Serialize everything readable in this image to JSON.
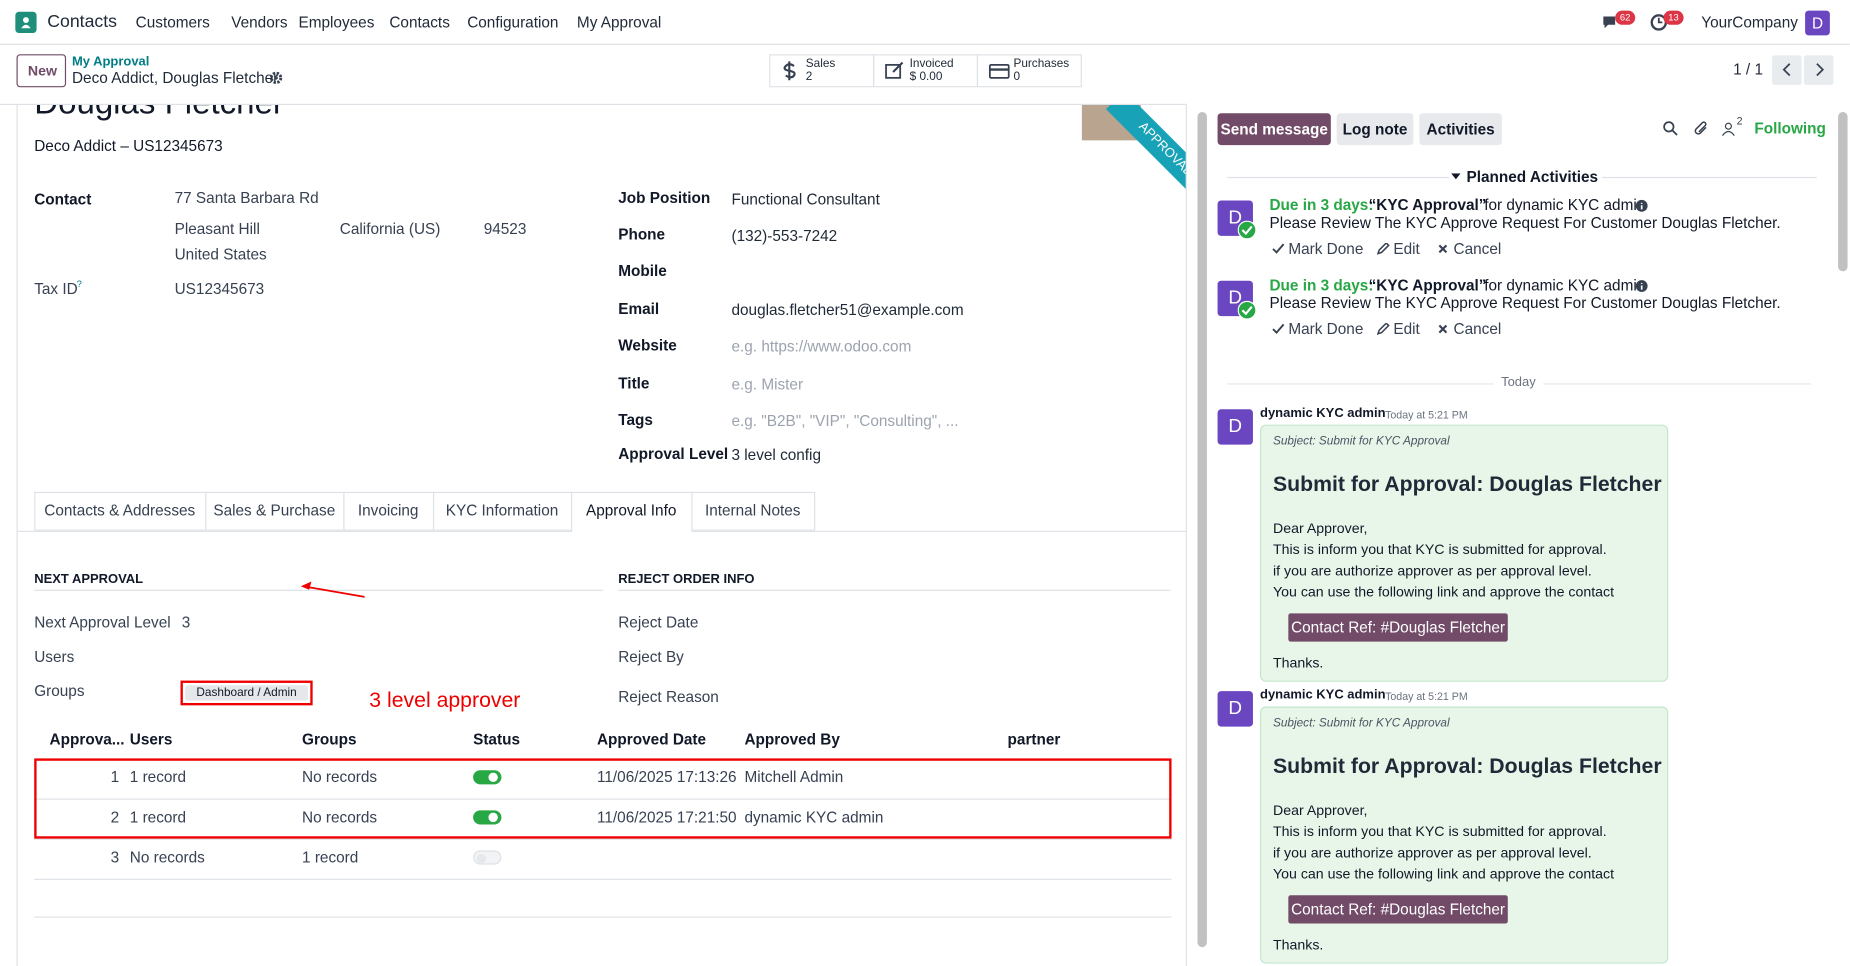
{
  "navbar": {
    "app": "Contacts",
    "menu": [
      "Customers",
      "Vendors",
      "Employees",
      "Contacts",
      "Configuration",
      "My Approval"
    ],
    "messages_badge": "62",
    "activities_badge": "13",
    "company": "YourCompany",
    "avatar": "D"
  },
  "control_panel": {
    "new_button": "New",
    "breadcrumb": "My Approval",
    "record": "Deco Addict, Douglas Fletcher",
    "smart_buttons": [
      {
        "label": "Sales",
        "value": "2"
      },
      {
        "label": "Invoiced",
        "value": "$ 0.00"
      },
      {
        "label": "Purchases",
        "value": "0"
      }
    ],
    "pager": "1 / 1"
  },
  "form": {
    "name": "Douglas Fletcher",
    "subtitle": "Deco Addict – US12345673",
    "ribbon": "APPROVAL",
    "contact": {
      "label": "Contact",
      "street": "77 Santa Barbara Rd",
      "city": "Pleasant Hill",
      "state": "California (US)",
      "zip": "94523",
      "country": "United States"
    },
    "tax_id": {
      "label": "Tax ID",
      "help": "?",
      "value": "US12345673"
    },
    "right_fields": [
      {
        "label": "Job Position",
        "value": "Functional Consultant"
      },
      {
        "label": "Phone",
        "value": "(132)-553-7242"
      },
      {
        "label": "Mobile"
      },
      {
        "label": "Email",
        "value": "douglas.fletcher51@example.com"
      },
      {
        "label": "Website",
        "placeholder": "e.g. https://www.odoo.com"
      },
      {
        "label": "Title",
        "placeholder": "e.g. Mister"
      },
      {
        "label": "Tags",
        "placeholder": "e.g. \"B2B\", \"VIP\", \"Consulting\", ..."
      },
      {
        "label": "Approval Level",
        "value": "3 level config"
      }
    ],
    "tabs": [
      "Contacts & Addresses",
      "Sales & Purchase",
      "Invoicing",
      "KYC Information",
      "Approval Info",
      "Internal Notes"
    ],
    "active_tab": 4,
    "next_approval": {
      "heading": "NEXT APPROVAL",
      "level_label": "Next Approval Level",
      "level_value": "3",
      "users_label": "Users",
      "groups_label": "Groups",
      "group_tag": "Dashboard / Admin"
    },
    "annotation": "3 level approver",
    "reject": {
      "heading": "REJECT ORDER INFO",
      "fields": [
        "Reject Date",
        "Reject By",
        "Reject Reason"
      ]
    },
    "table": {
      "columns": [
        "Approva...",
        "Users",
        "Groups",
        "Status",
        "Approved Date",
        "Approved By",
        "partner"
      ],
      "rows": [
        {
          "seq": "1",
          "users": "1 record",
          "groups": "No records",
          "status": true,
          "date": "11/06/2025 17:13:26",
          "by": "Mitchell Admin"
        },
        {
          "seq": "2",
          "users": "1 record",
          "groups": "No records",
          "status": true,
          "date": "11/06/2025 17:21:50",
          "by": "dynamic KYC admin"
        },
        {
          "seq": "3",
          "users": "No records",
          "groups": "1 record",
          "status": false
        }
      ]
    }
  },
  "chatter": {
    "buttons": [
      "Send message",
      "Log note",
      "Activities"
    ],
    "followers": "2",
    "following": "Following",
    "planned": "Planned Activities",
    "avatar": "D",
    "activity_actions": [
      "Mark Done",
      "Edit",
      "Cancel"
    ],
    "activities": [
      {
        "due": "Due in 3 days:",
        "summary": "“KYC Approval”",
        "assignee": "for dynamic KYC admin",
        "note": "Please Review The KYC Approve Request For Customer Douglas Fletcher."
      },
      {
        "due": "Due in 3 days:",
        "summary": "“KYC Approval”",
        "assignee": "for dynamic KYC admin",
        "note": "Please Review The KYC Approve Request For Customer Douglas Fletcher."
      }
    ],
    "separator": "Today",
    "messages": [
      {
        "author": "dynamic KYC admin",
        "date": "Today at 5:21 PM",
        "subject": "Subject: Submit for KYC Approval",
        "heading": "Submit for Approval: Douglas Fletcher",
        "lines": [
          "Dear Approver,",
          "This is inform you that KYC is submitted for approval.",
          "if you are authorize approver as per approval level.",
          "You can use the following link and approve the contact"
        ],
        "button": "Contact Ref: #Douglas Fletcher",
        "thanks": "Thanks."
      },
      {
        "author": "dynamic KYC admin",
        "date": "Today at 5:21 PM",
        "subject": "Subject: Submit for KYC Approval",
        "heading": "Submit for Approval: Douglas Fletcher",
        "lines": [
          "Dear Approver,",
          "This is inform you that KYC is submitted for approval.",
          "if you are authorize approver as per approval level.",
          "You can use the following link and approve the contact"
        ],
        "button": "Contact Ref: #Douglas Fletcher",
        "thanks": "Thanks."
      }
    ]
  }
}
